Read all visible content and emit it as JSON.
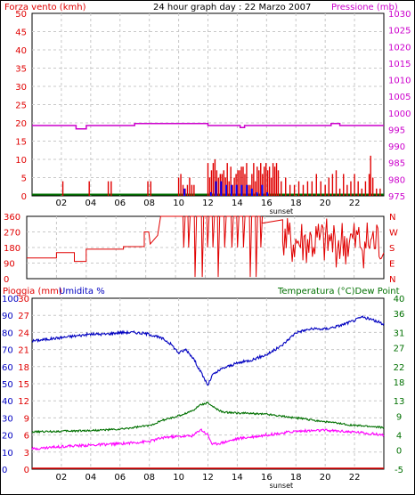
{
  "chart_data": [
    {
      "type": "line",
      "title": "24 hour graph day : 22 Marzo 2007",
      "left_label": "Forza vento (kmh)",
      "right_label": "Pressione (mb)",
      "xlabel_marker": "sunset",
      "x_ticks": [
        "02",
        "04",
        "06",
        "08",
        "10",
        "12",
        "14",
        "16",
        "18",
        "20",
        "22"
      ],
      "xlim": [
        0,
        24
      ],
      "wind_speed": {
        "name": "Forza vento (kmh)",
        "color": "#e00000",
        "ylim": [
          0,
          50
        ],
        "y_ticks": [
          "0",
          "5",
          "10",
          "15",
          "20",
          "25",
          "30",
          "35",
          "40",
          "45",
          "50"
        ]
      },
      "wind_gust_color": "#0000ff",
      "pressure": {
        "name": "Pressione (mb)",
        "color": "#cc00cc",
        "ylim": [
          975,
          1030
        ],
        "y_ticks": [
          "975",
          "980",
          "985",
          "990",
          "995",
          "1000",
          "1005",
          "1010",
          "1015",
          "1020",
          "1025",
          "1030"
        ],
        "x": [
          0,
          3.0,
          3.0,
          3.7,
          3.7,
          7.0,
          7.0,
          12.0,
          12.0,
          14.2,
          14.2,
          14.5,
          14.5,
          20.4,
          20.4,
          21.0,
          21.0,
          24
        ],
        "values": [
          996.2,
          996.2,
          995.2,
          995.2,
          996.2,
          996.2,
          996.8,
          996.8,
          996.2,
          996.2,
          995.6,
          995.6,
          996.2,
          996.2,
          996.8,
          996.8,
          996.2,
          996.2
        ]
      },
      "calm_color": "#007000"
    },
    {
      "type": "line",
      "wind_direction": {
        "name": "Direzione vento",
        "color": "#e00000",
        "ylim": [
          0,
          360
        ],
        "y_ticks": [
          "0",
          "90",
          "180",
          "270",
          "360"
        ],
        "compass": [
          "N",
          "W",
          "S",
          "E",
          "N"
        ]
      },
      "xlim": [
        0,
        24
      ],
      "x_ticks": [
        "02",
        "04",
        "06",
        "08",
        "10",
        "12",
        "14",
        "16",
        "18",
        "20",
        "22"
      ]
    },
    {
      "type": "line",
      "left_label_1": "Pioggia (mm)",
      "left_label_2": "Umidita %",
      "right_label": "Temperatura (°C)Dew Point",
      "xlabel_marker": "sunset",
      "x_ticks": [
        "02",
        "04",
        "06",
        "08",
        "10",
        "12",
        "14",
        "16",
        "18",
        "20",
        "22"
      ],
      "xlim": [
        0,
        24
      ],
      "rain": {
        "name": "Pioggia (mm)",
        "color": "#e00000",
        "ylim": [
          0,
          30
        ],
        "y_ticks": [
          "0",
          "3",
          "6",
          "9",
          "12",
          "15",
          "18",
          "21",
          "24",
          "27",
          "30"
        ],
        "total": 0
      },
      "humidity": {
        "name": "Umidita %",
        "color": "#0000c0",
        "ylim": [
          0,
          100
        ],
        "y_ticks": [
          "0",
          "10",
          "20",
          "30",
          "40",
          "50",
          "60",
          "70",
          "80",
          "90",
          "100"
        ],
        "x": [
          0,
          1,
          2,
          3,
          4,
          5,
          6,
          7,
          8,
          9,
          9.5,
          10,
          10.5,
          11,
          11.5,
          12,
          12.3,
          13,
          14,
          15,
          16,
          17,
          18,
          19,
          20,
          21,
          22,
          22.5,
          23,
          24
        ],
        "values": [
          75,
          76,
          77,
          78,
          79,
          79,
          80,
          80,
          79,
          76,
          73,
          68,
          70,
          65,
          57,
          49,
          55,
          59,
          62,
          64,
          67,
          72,
          80,
          82,
          82,
          84,
          87,
          89,
          88,
          85
        ]
      },
      "temperature": {
        "name": "Temperatura (°C)",
        "color": "#007000",
        "ylim": [
          -5,
          40
        ],
        "y_ticks": [
          "-5",
          "0",
          "4",
          "9",
          "13",
          "18",
          "22",
          "27",
          "31",
          "36",
          "40"
        ],
        "x": [
          0,
          2,
          4,
          6,
          8,
          9,
          10,
          11,
          11.5,
          12,
          12.5,
          13,
          14,
          16,
          18,
          20,
          22,
          24
        ],
        "values": [
          4.8,
          5.0,
          5.2,
          5.5,
          6.5,
          8.0,
          9.0,
          10.5,
          12.0,
          12.5,
          11.0,
          10.0,
          9.8,
          9.5,
          8.5,
          7.5,
          6.5,
          6.0
        ]
      },
      "dew_point": {
        "name": "Dew Point",
        "color": "#ff00ff",
        "x": [
          0,
          2,
          4,
          6,
          8,
          9,
          10,
          11,
          11.5,
          12,
          12.3,
          13,
          14,
          16,
          18,
          20,
          22,
          24
        ],
        "values": [
          0.3,
          1.0,
          1.3,
          1.7,
          2.3,
          3.4,
          3.6,
          3.8,
          5.5,
          4.0,
          1.5,
          2.0,
          3.0,
          4.0,
          5.0,
          5.2,
          4.8,
          4.0
        ]
      }
    }
  ]
}
